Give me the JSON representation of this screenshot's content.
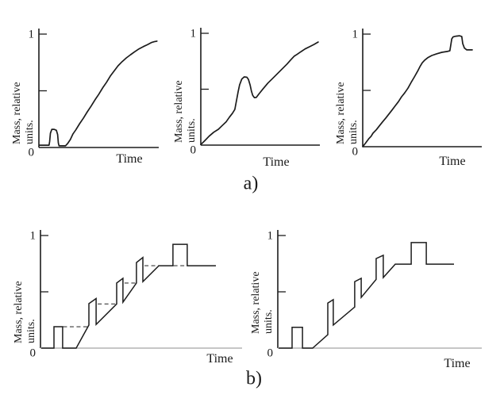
{
  "figure": {
    "background": "#ffffff",
    "curve_color": "#1c1c1c",
    "axis_color": "#1c1c1c",
    "axis_extension_color": "#b4b4b4",
    "dashed_guide_color": "#3a3a3a",
    "panel_labels": {
      "a": "a)",
      "b": "b)"
    }
  },
  "chart_data": [
    {
      "id": "a-left",
      "panel": "a",
      "type": "line",
      "style": "smooth",
      "xlabel": "Time",
      "ylabel": [
        "Mass, relative",
        "units."
      ],
      "ylim": [
        0,
        1
      ],
      "yticks": [
        {
          "value": 1,
          "label": "1"
        },
        {
          "value": 0.5,
          "label": ""
        },
        {
          "value": 0,
          "label": "0"
        }
      ],
      "series": [
        {
          "name": "mass",
          "points": [
            [
              0.005,
              0.02
            ],
            [
              0.085,
              0.02
            ],
            [
              0.09,
              0.055
            ],
            [
              0.096,
              0.125
            ],
            [
              0.108,
              0.16
            ],
            [
              0.128,
              0.16
            ],
            [
              0.146,
              0.152
            ],
            [
              0.156,
              0.115
            ],
            [
              0.162,
              0.04
            ],
            [
              0.168,
              0.015
            ],
            [
              0.222,
              0.015
            ],
            [
              0.24,
              0.035
            ],
            [
              0.262,
              0.07
            ],
            [
              0.285,
              0.12
            ],
            [
              0.308,
              0.155
            ],
            [
              0.34,
              0.21
            ],
            [
              0.372,
              0.26
            ],
            [
              0.404,
              0.315
            ],
            [
              0.436,
              0.365
            ],
            [
              0.468,
              0.42
            ],
            [
              0.5,
              0.47
            ],
            [
              0.532,
              0.525
            ],
            [
              0.564,
              0.575
            ],
            [
              0.596,
              0.63
            ],
            [
              0.628,
              0.675
            ],
            [
              0.66,
              0.72
            ],
            [
              0.695,
              0.757
            ],
            [
              0.73,
              0.79
            ],
            [
              0.765,
              0.818
            ],
            [
              0.8,
              0.845
            ],
            [
              0.836,
              0.87
            ],
            [
              0.872,
              0.89
            ],
            [
              0.905,
              0.906
            ],
            [
              0.938,
              0.925
            ],
            [
              0.962,
              0.933
            ],
            [
              0.985,
              0.938
            ]
          ]
        }
      ],
      "dashed_guides": []
    },
    {
      "id": "a-mid",
      "panel": "a",
      "type": "line",
      "style": "smooth",
      "xlabel": "Time",
      "ylabel": [
        "Mass, relative",
        "units."
      ],
      "ylim": [
        0,
        1
      ],
      "yticks": [
        {
          "value": 1,
          "label": "1"
        },
        {
          "value": 0.5,
          "label": ""
        },
        {
          "value": 0,
          "label": "0"
        }
      ],
      "series": [
        {
          "name": "mass",
          "points": [
            [
              0.0,
              0.005
            ],
            [
              0.032,
              0.038
            ],
            [
              0.07,
              0.08
            ],
            [
              0.108,
              0.115
            ],
            [
              0.148,
              0.142
            ],
            [
              0.18,
              0.175
            ],
            [
              0.212,
              0.207
            ],
            [
              0.24,
              0.25
            ],
            [
              0.266,
              0.285
            ],
            [
              0.286,
              0.32
            ],
            [
              0.3,
              0.4
            ],
            [
              0.314,
              0.48
            ],
            [
              0.326,
              0.54
            ],
            [
              0.344,
              0.59
            ],
            [
              0.364,
              0.61
            ],
            [
              0.386,
              0.608
            ],
            [
              0.4,
              0.588
            ],
            [
              0.414,
              0.538
            ],
            [
              0.425,
              0.482
            ],
            [
              0.436,
              0.445
            ],
            [
              0.45,
              0.425
            ],
            [
              0.466,
              0.426
            ],
            [
              0.49,
              0.46
            ],
            [
              0.524,
              0.505
            ],
            [
              0.564,
              0.555
            ],
            [
              0.604,
              0.597
            ],
            [
              0.644,
              0.64
            ],
            [
              0.684,
              0.682
            ],
            [
              0.724,
              0.725
            ],
            [
              0.758,
              0.765
            ],
            [
              0.784,
              0.795
            ],
            [
              0.806,
              0.81
            ],
            [
              0.836,
              0.832
            ],
            [
              0.876,
              0.86
            ],
            [
              0.914,
              0.88
            ],
            [
              0.95,
              0.9
            ],
            [
              0.986,
              0.922
            ]
          ]
        }
      ],
      "dashed_guides": []
    },
    {
      "id": "a-right",
      "panel": "a",
      "type": "line",
      "style": "smooth",
      "xlabel": "Time",
      "ylabel": [
        "Mass, relative",
        "units."
      ],
      "ylim": [
        0,
        1
      ],
      "yticks": [
        {
          "value": 1,
          "label": "1"
        },
        {
          "value": 0.5,
          "label": ""
        },
        {
          "value": 0,
          "label": "0"
        }
      ],
      "series": [
        {
          "name": "mass",
          "points": [
            [
              0.0,
              0.0
            ],
            [
              0.026,
              0.035
            ],
            [
              0.05,
              0.07
            ],
            [
              0.07,
              0.092
            ],
            [
              0.086,
              0.12
            ],
            [
              0.114,
              0.15
            ],
            [
              0.14,
              0.185
            ],
            [
              0.166,
              0.22
            ],
            [
              0.194,
              0.255
            ],
            [
              0.22,
              0.29
            ],
            [
              0.246,
              0.325
            ],
            [
              0.274,
              0.365
            ],
            [
              0.3,
              0.4
            ],
            [
              0.326,
              0.443
            ],
            [
              0.354,
              0.48
            ],
            [
              0.38,
              0.52
            ],
            [
              0.406,
              0.57
            ],
            [
              0.434,
              0.62
            ],
            [
              0.46,
              0.668
            ],
            [
              0.48,
              0.71
            ],
            [
              0.5,
              0.745
            ],
            [
              0.52,
              0.768
            ],
            [
              0.546,
              0.79
            ],
            [
              0.58,
              0.81
            ],
            [
              0.62,
              0.825
            ],
            [
              0.664,
              0.838
            ],
            [
              0.71,
              0.846
            ],
            [
              0.732,
              0.852
            ],
            [
              0.74,
              0.905
            ],
            [
              0.748,
              0.958
            ],
            [
              0.76,
              0.976
            ],
            [
              0.784,
              0.982
            ],
            [
              0.812,
              0.985
            ],
            [
              0.832,
              0.978
            ],
            [
              0.84,
              0.916
            ],
            [
              0.854,
              0.876
            ],
            [
              0.874,
              0.86
            ],
            [
              0.92,
              0.86
            ]
          ]
        }
      ],
      "dashed_guides": []
    },
    {
      "id": "b-left",
      "panel": "b",
      "type": "line",
      "style": "piecewise",
      "xlabel": "Time",
      "ylabel": [
        "Mass, relative",
        "units."
      ],
      "ylim": [
        0,
        1
      ],
      "yticks": [
        {
          "value": 1,
          "label": "1"
        },
        {
          "value": 0.5,
          "label": ""
        },
        {
          "value": 0,
          "label": "0"
        }
      ],
      "series": [
        {
          "name": "mass",
          "points": [
            [
              0.004,
              0
            ],
            [
              0.067,
              0
            ],
            [
              0.067,
              0.19
            ],
            [
              0.11,
              0.19
            ],
            [
              0.11,
              0
            ],
            [
              0.177,
              0
            ],
            [
              0.24,
              0.205
            ],
            [
              0.24,
              0.395
            ],
            [
              0.276,
              0.44
            ],
            [
              0.276,
              0.21
            ],
            [
              0.378,
              0.392
            ],
            [
              0.378,
              0.578
            ],
            [
              0.409,
              0.62
            ],
            [
              0.409,
              0.408
            ],
            [
              0.476,
              0.578
            ],
            [
              0.476,
              0.76
            ],
            [
              0.508,
              0.805
            ],
            [
              0.508,
              0.59
            ],
            [
              0.587,
              0.732
            ],
            [
              0.657,
              0.732
            ],
            [
              0.657,
              0.922
            ],
            [
              0.728,
              0.922
            ],
            [
              0.728,
              0.732
            ],
            [
              0.87,
              0.732
            ]
          ]
        }
      ],
      "dashed_guides": [
        {
          "y": 0.19,
          "x1": 0.112,
          "x2": 0.238
        },
        {
          "y": 0.392,
          "x1": 0.284,
          "x2": 0.376
        },
        {
          "y": 0.578,
          "x1": 0.417,
          "x2": 0.474
        },
        {
          "y": 0.732,
          "x1": 0.516,
          "x2": 0.585
        },
        {
          "y": 0.732,
          "x1": 0.66,
          "x2": 0.726
        }
      ]
    },
    {
      "id": "b-right",
      "panel": "b",
      "type": "line",
      "style": "piecewise",
      "xlabel": "Time",
      "ylabel": [
        "Mass, relative",
        "units."
      ],
      "ylim": [
        0,
        1
      ],
      "yticks": [
        {
          "value": 1,
          "label": "1"
        },
        {
          "value": 0.5,
          "label": ""
        },
        {
          "value": 0,
          "label": "0"
        }
      ],
      "series": [
        {
          "name": "mass",
          "points": [
            [
              0.004,
              0
            ],
            [
              0.07,
              0
            ],
            [
              0.07,
              0.185
            ],
            [
              0.121,
              0.185
            ],
            [
              0.121,
              0
            ],
            [
              0.171,
              0
            ],
            [
              0.245,
              0.12
            ],
            [
              0.245,
              0.4
            ],
            [
              0.272,
              0.43
            ],
            [
              0.272,
              0.205
            ],
            [
              0.377,
              0.365
            ],
            [
              0.377,
              0.59
            ],
            [
              0.409,
              0.62
            ],
            [
              0.409,
              0.45
            ],
            [
              0.482,
              0.61
            ],
            [
              0.482,
              0.795
            ],
            [
              0.517,
              0.825
            ],
            [
              0.517,
              0.627
            ],
            [
              0.576,
              0.746
            ],
            [
              0.654,
              0.746
            ],
            [
              0.654,
              0.937
            ],
            [
              0.728,
              0.937
            ],
            [
              0.728,
              0.746
            ],
            [
              0.864,
              0.746
            ]
          ]
        }
      ],
      "dashed_guides": []
    }
  ]
}
